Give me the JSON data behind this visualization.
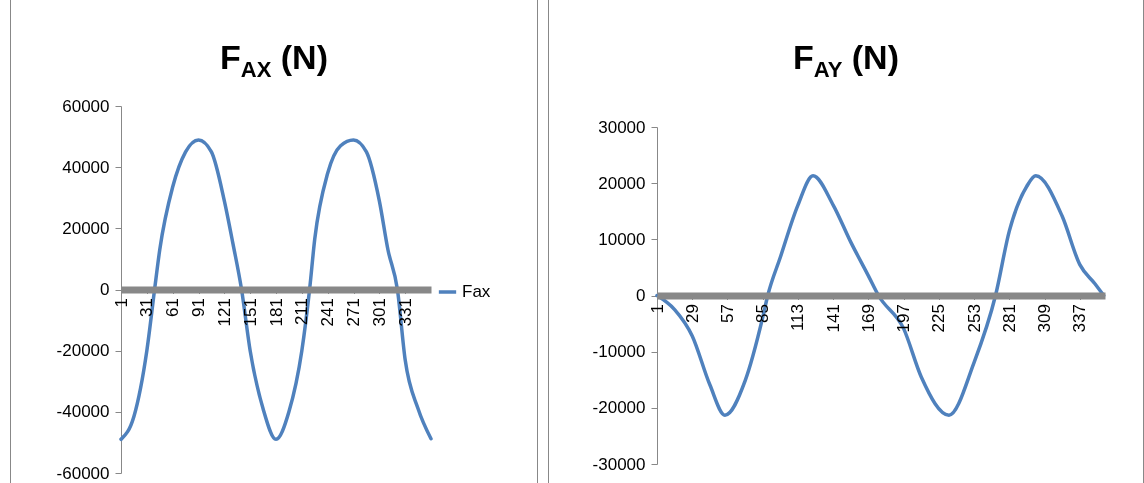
{
  "chart_data": [
    {
      "type": "line",
      "title": "F$_{AX}$ (N)",
      "legend": "right",
      "xlim": [
        1,
        361
      ],
      "xticks": [
        1,
        31,
        61,
        91,
        121,
        151,
        181,
        211,
        241,
        271,
        301,
        331
      ],
      "ylim": [
        -60000,
        60000
      ],
      "yticks": [
        -60000,
        -40000,
        -20000,
        0,
        20000,
        40000,
        60000
      ],
      "x": [
        1,
        16,
        31,
        40,
        46,
        61,
        76,
        91,
        106,
        121,
        131,
        141,
        151,
        166,
        181,
        196,
        211,
        220,
        226,
        241,
        256,
        271,
        286,
        301,
        311,
        322,
        331,
        346,
        361
      ],
      "series": [
        {
          "name": "Fax",
          "color": "#4f81bd",
          "values": [
            -49000,
            -41500,
            -20000,
            0,
            13000,
            33500,
            45000,
            48900,
            45000,
            29000,
            15000,
            0,
            -20000,
            -39000,
            -49000,
            -40000,
            -20000,
            0,
            16500,
            38000,
            47000,
            48900,
            45000,
            29000,
            13000,
            0,
            -23000,
            -39000,
            -48800
          ]
        }
      ]
    },
    {
      "type": "line",
      "title": "F$_{AY}$ (N)",
      "xlim": [
        1,
        357
      ],
      "xticks": [
        1,
        29,
        57,
        85,
        113,
        141,
        169,
        197,
        225,
        253,
        281,
        309,
        337
      ],
      "ylim": [
        -30000,
        30000
      ],
      "yticks": [
        -30000,
        -20000,
        -10000,
        0,
        10000,
        20000,
        30000
      ],
      "x": [
        1,
        15,
        29,
        43,
        55,
        71,
        85,
        89,
        99,
        113,
        125,
        141,
        155,
        169,
        177,
        197,
        211,
        233,
        253,
        270,
        281,
        295,
        302,
        323,
        337,
        349,
        356
      ],
      "series": [
        {
          "color": "#4f81bd",
          "values": [
            0,
            -2500,
            -7200,
            -15900,
            -21300,
            -15200,
            -3900,
            0,
            6800,
            16100,
            21300,
            16100,
            9500,
            3500,
            0,
            -5900,
            -14500,
            -21300,
            -11900,
            0,
            11500,
            19500,
            21300,
            14100,
            5500,
            2100,
            0
          ]
        }
      ]
    }
  ]
}
